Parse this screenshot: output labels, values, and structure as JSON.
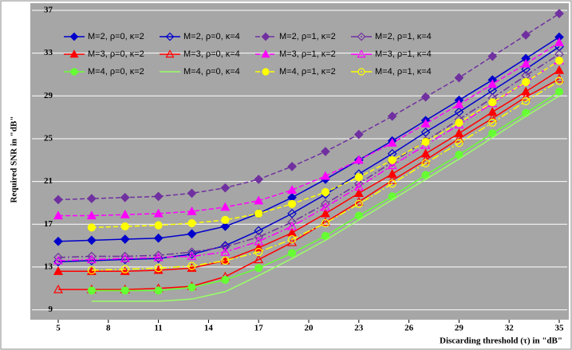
{
  "chart_data": {
    "type": "line",
    "y_label": "Required SNR in \"dB\"",
    "x_label": "Discarding threshold (τ) in \"dB\"",
    "x": [
      5,
      7,
      9,
      11,
      13,
      15,
      17,
      19,
      21,
      23,
      25,
      27,
      29,
      31,
      33,
      35
    ],
    "xlim": [
      5,
      35
    ],
    "xticks": [
      5,
      8,
      11,
      14,
      17,
      20,
      23,
      26,
      29,
      32,
      35
    ],
    "ylim": [
      8,
      37
    ],
    "yticks": [
      9,
      13,
      17,
      21,
      25,
      29,
      33,
      37
    ],
    "grid": true,
    "legend": "top-left",
    "series": [
      {
        "name": "M=2, ρ=0, κ=2",
        "color": "#0000cc",
        "marker": "diamond",
        "filled": true,
        "line_style": "solid",
        "values": [
          15.4,
          15.5,
          15.6,
          15.7,
          16.1,
          16.8,
          18.0,
          19.5,
          21.2,
          23.0,
          24.8,
          26.7,
          28.6,
          30.5,
          32.5,
          34.5
        ]
      },
      {
        "name": "M=2, ρ=0, κ=4",
        "color": "#0000cc",
        "marker": "diamond",
        "filled": false,
        "line_style": "solid",
        "values": [
          13.5,
          13.6,
          13.7,
          13.8,
          14.2,
          15.0,
          16.4,
          18.0,
          19.8,
          21.7,
          23.6,
          25.6,
          27.5,
          29.5,
          31.5,
          33.6
        ]
      },
      {
        "name": "M=2, ρ=1, κ=2",
        "color": "#7030a0",
        "marker": "diamond",
        "filled": true,
        "line_style": "dashed",
        "values": [
          19.3,
          19.4,
          19.5,
          19.6,
          19.9,
          20.4,
          21.2,
          22.4,
          23.8,
          25.4,
          27.1,
          28.9,
          30.7,
          32.7,
          34.7,
          36.7
        ]
      },
      {
        "name": "M=2, ρ=1, κ=4",
        "color": "#7030a0",
        "marker": "diamond",
        "filled": false,
        "line_style": "dashdot",
        "values": [
          13.9,
          14.0,
          14.0,
          14.1,
          14.4,
          14.9,
          15.8,
          17.2,
          18.9,
          20.8,
          22.8,
          24.8,
          26.8,
          28.8,
          30.9,
          32.9
        ]
      },
      {
        "name": "M=3, ρ=0, κ=2",
        "color": "#ff0000",
        "marker": "triangle",
        "filled": true,
        "line_style": "solid",
        "values": [
          12.6,
          12.6,
          12.6,
          12.7,
          12.9,
          13.6,
          14.8,
          16.2,
          18.0,
          19.9,
          21.7,
          23.6,
          25.5,
          27.5,
          29.4,
          31.4
        ]
      },
      {
        "name": "M=3, ρ=0, κ=4",
        "color": "#ff0000",
        "marker": "triangle",
        "filled": false,
        "line_style": "solid",
        "values": [
          10.9,
          10.9,
          10.9,
          11.0,
          11.2,
          12.1,
          13.7,
          15.3,
          17.2,
          19.1,
          21.1,
          23.0,
          25.0,
          26.9,
          28.9,
          30.6
        ]
      },
      {
        "name": "M=3, ρ=1, κ=2",
        "color": "#ff00ff",
        "marker": "triangle",
        "filled": true,
        "line_style": "dashed",
        "values": [
          17.8,
          17.8,
          17.9,
          18.0,
          18.2,
          18.6,
          19.2,
          20.2,
          21.5,
          23.0,
          24.6,
          26.4,
          28.2,
          30.1,
          32.0,
          34.0
        ]
      },
      {
        "name": "M=3, ρ=1, κ=4",
        "color": "#ff00ff",
        "marker": "triangle",
        "filled": false,
        "line_style": "dashdot",
        "values": [
          13.6,
          13.7,
          13.8,
          13.9,
          14.0,
          14.4,
          15.4,
          16.8,
          18.6,
          20.5,
          22.5,
          24.4,
          26.3,
          28.3,
          30.3,
          32.3
        ]
      },
      {
        "name": "M=4, ρ=0, κ=2",
        "color": "#66ff33",
        "marker": "circle",
        "filled": true,
        "line_style": "solid",
        "values": [
          null,
          10.8,
          10.8,
          10.8,
          11.1,
          11.8,
          12.9,
          14.3,
          15.9,
          17.8,
          19.6,
          21.6,
          23.5,
          25.5,
          27.4,
          29.4
        ]
      },
      {
        "name": "M=4, ρ=0, κ=4",
        "color": "#99ff66",
        "marker": "none",
        "filled": false,
        "line_style": "solid",
        "values": [
          null,
          9.8,
          9.8,
          9.8,
          10.0,
          10.7,
          12.2,
          13.8,
          15.5,
          17.4,
          19.3,
          21.2,
          23.1,
          25.1,
          27.1,
          29.0
        ]
      },
      {
        "name": "M=4, ρ=1, κ=2",
        "color": "#ffff00",
        "marker": "circle",
        "filled": true,
        "line_style": "dashed",
        "values": [
          null,
          16.7,
          16.8,
          16.9,
          17.1,
          17.4,
          18.0,
          18.9,
          20.0,
          21.4,
          23.0,
          24.7,
          26.5,
          28.4,
          30.3,
          32.3
        ]
      },
      {
        "name": "M=4, ρ=1, κ=4",
        "color": "#ffff00",
        "marker": "circle",
        "filled": false,
        "line_style": "dashdot",
        "values": [
          null,
          12.7,
          12.8,
          12.9,
          13.1,
          13.6,
          14.4,
          15.6,
          17.1,
          18.9,
          20.8,
          22.7,
          24.6,
          26.5,
          28.5,
          30.4
        ]
      }
    ]
  }
}
